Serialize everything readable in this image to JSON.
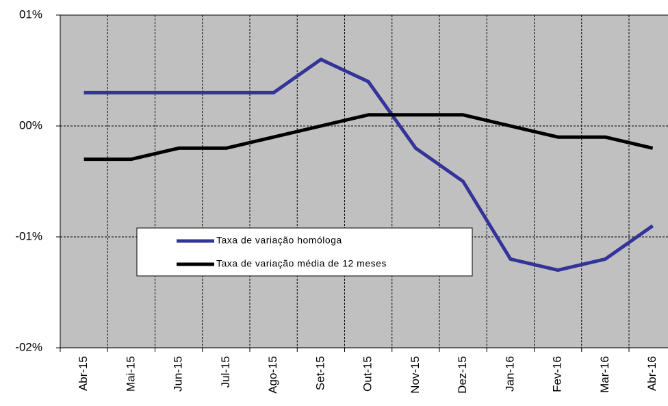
{
  "chart_data": {
    "type": "line",
    "categories": [
      "Abr-15",
      "Mai-15",
      "Jun-15",
      "Jul-15",
      "Ago-15",
      "Set-15",
      "Out-15",
      "Nov-15",
      "Dez-15",
      "Jan-16",
      "Fev-16",
      "Mar-16",
      "Abr-16"
    ],
    "series": [
      {
        "name": "Taxa de variação homóloga",
        "color": "#333399",
        "values": [
          0.3,
          0.3,
          0.3,
          0.3,
          0.3,
          0.6,
          0.4,
          -0.2,
          -0.5,
          -1.2,
          -1.3,
          -1.2,
          -0.9
        ]
      },
      {
        "name": "Taxa de variação média de 12 meses",
        "color": "#000000",
        "values": [
          -0.3,
          -0.3,
          -0.2,
          -0.2,
          -0.1,
          0.0,
          0.1,
          0.1,
          0.1,
          0.0,
          -0.1,
          -0.1,
          -0.2
        ]
      }
    ],
    "ylim": [
      -2,
      1
    ],
    "yticks": [
      {
        "value": 1,
        "label": "01%"
      },
      {
        "value": 0,
        "label": "00%"
      },
      {
        "value": -1,
        "label": "-01%"
      },
      {
        "value": -2,
        "label": "-02%"
      }
    ],
    "grid": true
  }
}
